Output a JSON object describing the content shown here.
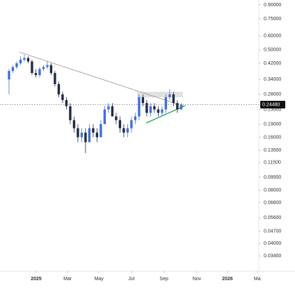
{
  "chart_data": {
    "type": "candlestick",
    "log_scale": true,
    "open": [
      0.34,
      0.38,
      0.4,
      0.42,
      0.44,
      0.45,
      0.43,
      0.37,
      0.36,
      0.39,
      0.4,
      0.41,
      0.37,
      0.32,
      0.28,
      0.26,
      0.24,
      0.2,
      0.18,
      0.16,
      0.17,
      0.15,
      0.18,
      0.17,
      0.16,
      0.19,
      0.23,
      0.24,
      0.21,
      0.2,
      0.18,
      0.17,
      0.18,
      0.2,
      0.21,
      0.27,
      0.25,
      0.22,
      0.24,
      0.23,
      0.22,
      0.23,
      0.27,
      0.28,
      0.25,
      0.23
    ],
    "high": [
      0.39,
      0.41,
      0.43,
      0.46,
      0.47,
      0.46,
      0.44,
      0.39,
      0.4,
      0.41,
      0.43,
      0.42,
      0.38,
      0.33,
      0.29,
      0.27,
      0.25,
      0.21,
      0.19,
      0.18,
      0.18,
      0.19,
      0.19,
      0.18,
      0.2,
      0.24,
      0.25,
      0.25,
      0.22,
      0.21,
      0.19,
      0.19,
      0.21,
      0.22,
      0.28,
      0.28,
      0.26,
      0.25,
      0.25,
      0.24,
      0.24,
      0.28,
      0.3,
      0.29,
      0.26,
      0.25
    ],
    "low": [
      0.28,
      0.37,
      0.39,
      0.41,
      0.43,
      0.42,
      0.36,
      0.35,
      0.35,
      0.38,
      0.39,
      0.36,
      0.31,
      0.27,
      0.25,
      0.23,
      0.19,
      0.17,
      0.15,
      0.15,
      0.13,
      0.15,
      0.16,
      0.15,
      0.16,
      0.19,
      0.22,
      0.21,
      0.19,
      0.17,
      0.16,
      0.16,
      0.17,
      0.19,
      0.2,
      0.24,
      0.21,
      0.21,
      0.22,
      0.21,
      0.21,
      0.22,
      0.26,
      0.24,
      0.22,
      0.23
    ],
    "close": [
      0.38,
      0.4,
      0.42,
      0.44,
      0.45,
      0.43,
      0.37,
      0.36,
      0.39,
      0.4,
      0.41,
      0.37,
      0.32,
      0.28,
      0.26,
      0.24,
      0.2,
      0.18,
      0.16,
      0.17,
      0.15,
      0.18,
      0.17,
      0.16,
      0.19,
      0.23,
      0.24,
      0.21,
      0.2,
      0.18,
      0.17,
      0.18,
      0.2,
      0.21,
      0.27,
      0.25,
      0.22,
      0.24,
      0.23,
      0.22,
      0.23,
      0.27,
      0.28,
      0.25,
      0.23,
      0.2448
    ],
    "up_color": "#3f6fd8",
    "down_color": "#1f2a44",
    "xlim": [
      -2.36,
      65.3
    ],
    "xticks": [
      {
        "value": 7.1,
        "label": "2025"
      },
      {
        "value": 15.3,
        "label": "Mar"
      },
      {
        "value": 23.5,
        "label": "May"
      },
      {
        "value": 32.0,
        "label": "Jul"
      },
      {
        "value": 40.5,
        "label": "Sep"
      },
      {
        "value": 49.1,
        "label": "Nov"
      },
      {
        "value": 57.1,
        "label": "2026"
      },
      {
        "value": 64.9,
        "label": "Ma"
      }
    ],
    "ylim": [
      0.0279,
      0.959
    ],
    "yticks": [
      {
        "value": 0.9,
        "label": "0.90000"
      },
      {
        "value": 0.75,
        "label": "0.75000"
      },
      {
        "value": 0.6,
        "label": "0.60000"
      },
      {
        "value": 0.5,
        "label": "0.50000"
      },
      {
        "value": 0.42,
        "label": "0.42000"
      },
      {
        "value": 0.34,
        "label": "0.34000"
      },
      {
        "value": 0.28,
        "label": "0.28000"
      },
      {
        "value": 0.23,
        "label": "0.23000"
      },
      {
        "value": 0.19,
        "label": "0.19000"
      },
      {
        "value": 0.16,
        "label": "0.16000"
      },
      {
        "value": 0.135,
        "label": "0.13500"
      },
      {
        "value": 0.115,
        "label": "0.11500"
      },
      {
        "value": 0.095,
        "label": "0.09500"
      },
      {
        "value": 0.08,
        "label": "0.08000"
      },
      {
        "value": 0.068,
        "label": "0.06800"
      },
      {
        "value": 0.056,
        "label": "0.05600"
      },
      {
        "value": 0.047,
        "label": "0.04700"
      },
      {
        "value": 0.04,
        "label": "0.04000"
      },
      {
        "value": 0.034,
        "label": "0.03400"
      }
    ],
    "current_price": {
      "value": 0.2448,
      "label": "0.24480"
    }
  }
}
